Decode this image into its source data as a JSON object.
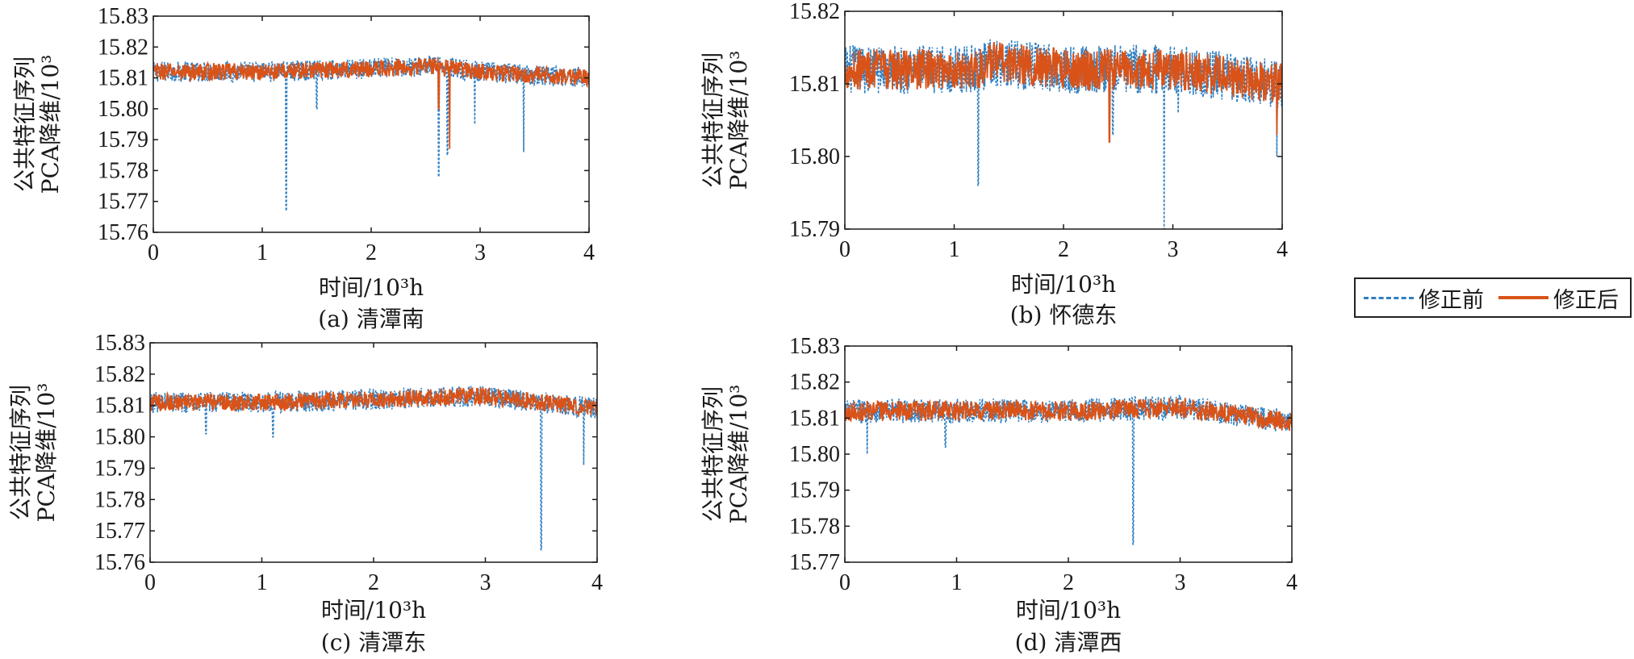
{
  "colors": {
    "before": "#2f7fc1",
    "after": "#d95319",
    "axis": "#1a1a1a"
  },
  "legend": {
    "before": "修正前",
    "after": "修正后",
    "placement": "right-middle"
  },
  "chart_data": [
    {
      "type": "line",
      "caption": "(a) 清潭南",
      "xlabel": "时间/10³h",
      "ylabel_line1": "公共特征序列",
      "ylabel_line2": "PCA降维/10³",
      "xlim": [
        0,
        4
      ],
      "ylim": [
        15.76,
        15.83
      ],
      "xticks": [
        "0",
        "1",
        "2",
        "3",
        "4"
      ],
      "yticks": [
        "15.76",
        "15.77",
        "15.78",
        "15.79",
        "15.80",
        "15.81",
        "15.82",
        "15.83"
      ],
      "series": [
        {
          "name": "修正前",
          "style": "dashed",
          "baseline_points": [
            [
              0,
              15.812
            ],
            [
              1,
              15.812
            ],
            [
              2,
              15.813
            ],
            [
              2.6,
              15.814
            ],
            [
              3,
              15.812
            ],
            [
              4,
              15.81
            ]
          ],
          "spikes": [
            [
              1.22,
              15.767
            ],
            [
              2.62,
              15.778
            ],
            [
              2.7,
              15.785
            ],
            [
              2.95,
              15.795
            ],
            [
              3.4,
              15.786
            ],
            [
              1.5,
              15.8
            ]
          ]
        },
        {
          "name": "修正后",
          "style": "solid",
          "baseline_points": [
            [
              0,
              15.812
            ],
            [
              1,
              15.812
            ],
            [
              2,
              15.813
            ],
            [
              2.6,
              15.814
            ],
            [
              3,
              15.812
            ],
            [
              4,
              15.81
            ]
          ],
          "spikes": [
            [
              2.72,
              15.787
            ],
            [
              2.62,
              15.8
            ]
          ]
        }
      ]
    },
    {
      "type": "line",
      "caption": "(b) 怀德东",
      "xlabel": "时间/10³h",
      "ylabel_line1": "公共特征序列",
      "ylabel_line2": "PCA降维/10³",
      "xlim": [
        0,
        4
      ],
      "ylim": [
        15.79,
        15.82
      ],
      "xticks": [
        "0",
        "1",
        "2",
        "3",
        "4"
      ],
      "yticks": [
        "15.79",
        "15.80",
        "15.81",
        "15.82"
      ],
      "series": [
        {
          "name": "修正前",
          "style": "dashed",
          "baseline_points": [
            [
              0,
              15.812
            ],
            [
              1,
              15.812
            ],
            [
              1.22,
              15.812
            ],
            [
              1.35,
              15.813
            ],
            [
              2,
              15.812
            ],
            [
              3,
              15.812
            ],
            [
              4,
              15.81
            ]
          ],
          "spikes": [
            [
              1.22,
              15.796
            ],
            [
              2.92,
              15.79
            ],
            [
              2.45,
              15.803
            ],
            [
              3.05,
              15.806
            ],
            [
              3.95,
              15.8
            ]
          ]
        },
        {
          "name": "修正后",
          "style": "solid",
          "baseline_points": [
            [
              0,
              15.812
            ],
            [
              1,
              15.812
            ],
            [
              1.22,
              15.812
            ],
            [
              1.35,
              15.813
            ],
            [
              2,
              15.812
            ],
            [
              3,
              15.812
            ],
            [
              4,
              15.81
            ]
          ],
          "spikes": [
            [
              2.42,
              15.802
            ],
            [
              3.95,
              15.803
            ]
          ]
        }
      ]
    },
    {
      "type": "line",
      "caption": "(c) 清潭东",
      "xlabel": "时间/10³h",
      "ylabel_line1": "公共特征序列",
      "ylabel_line2": "PCA降维/10³",
      "xlim": [
        0,
        4
      ],
      "ylim": [
        15.76,
        15.83
      ],
      "xticks": [
        "0",
        "1",
        "2",
        "3",
        "4"
      ],
      "yticks": [
        "15.76",
        "15.77",
        "15.78",
        "15.79",
        "15.80",
        "15.81",
        "15.82",
        "15.83"
      ],
      "series": [
        {
          "name": "修正前",
          "style": "dashed",
          "baseline_points": [
            [
              0,
              15.811
            ],
            [
              1,
              15.811
            ],
            [
              2,
              15.812
            ],
            [
              3,
              15.813
            ],
            [
              4,
              15.809
            ]
          ],
          "spikes": [
            [
              3.5,
              15.764
            ],
            [
              3.88,
              15.791
            ],
            [
              0.5,
              15.801
            ],
            [
              1.1,
              15.8
            ]
          ]
        },
        {
          "name": "修正后",
          "style": "solid",
          "baseline_points": [
            [
              0,
              15.811
            ],
            [
              1,
              15.811
            ],
            [
              2,
              15.812
            ],
            [
              3,
              15.813
            ],
            [
              4,
              15.809
            ]
          ],
          "spikes": []
        }
      ]
    },
    {
      "type": "line",
      "caption": "(d) 清潭西",
      "xlabel": "时间/10³h",
      "ylabel_line1": "公共特征序列",
      "ylabel_line2": "PCA降维/10³",
      "xlim": [
        0,
        4
      ],
      "ylim": [
        15.77,
        15.83
      ],
      "xticks": [
        "0",
        "1",
        "2",
        "3",
        "4"
      ],
      "yticks": [
        "15.77",
        "15.78",
        "15.79",
        "15.80",
        "15.81",
        "15.82",
        "15.83"
      ],
      "series": [
        {
          "name": "修正前",
          "style": "dashed",
          "baseline_points": [
            [
              0,
              15.812
            ],
            [
              1,
              15.812
            ],
            [
              1.3,
              15.812
            ],
            [
              2,
              15.812
            ],
            [
              3,
              15.813
            ],
            [
              4,
              15.809
            ]
          ],
          "spikes": [
            [
              2.58,
              15.775
            ],
            [
              0.2,
              15.8
            ],
            [
              0.9,
              15.802
            ]
          ]
        },
        {
          "name": "修正后",
          "style": "solid",
          "baseline_points": [
            [
              0,
              15.812
            ],
            [
              1,
              15.812
            ],
            [
              1.3,
              15.812
            ],
            [
              2,
              15.812
            ],
            [
              3,
              15.813
            ],
            [
              4,
              15.809
            ]
          ],
          "spikes": []
        }
      ]
    }
  ]
}
